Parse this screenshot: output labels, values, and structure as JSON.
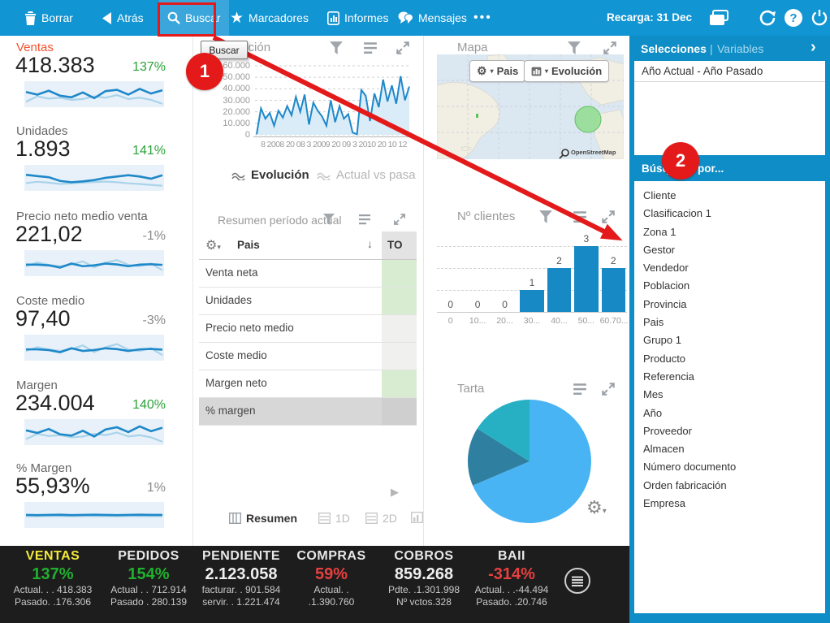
{
  "toolbar": {
    "items": [
      "Borrar",
      "Atrás",
      "Buscar",
      "Marcadores",
      "Informes",
      "Mensajes"
    ],
    "more": "•••",
    "reload": "Recarga: 31 Dec"
  },
  "kpis": [
    {
      "label": "Ventas",
      "value": "418.383",
      "pct": "137%",
      "spark_current": [
        62,
        50,
        68,
        45,
        38,
        60,
        34,
        66,
        72,
        50,
        76,
        55,
        70
      ],
      "spark_past": [
        18,
        42,
        32,
        36,
        26,
        30,
        42,
        36,
        48,
        30,
        36,
        26,
        8
      ]
    },
    {
      "label": "Unidades",
      "value": "1.893",
      "pct": "141%",
      "spark_current": [
        66,
        60,
        55,
        38,
        32,
        36,
        42,
        52,
        58,
        64,
        58,
        48,
        64
      ],
      "spark_past": [
        28,
        34,
        30,
        24,
        27,
        30,
        33,
        35,
        32,
        27,
        24,
        20,
        16
      ]
    },
    {
      "label": "Precio neto medio venta",
      "value": "221,02",
      "pct": "-1%",
      "spark_current": [
        45,
        45,
        42,
        32,
        50,
        38,
        42,
        50,
        46,
        38,
        45,
        47,
        44
      ],
      "spark_past": [
        38,
        55,
        44,
        38,
        46,
        60,
        33,
        55,
        66,
        44,
        38,
        50,
        20
      ]
    },
    {
      "label": "Coste medio",
      "value": "97,40",
      "pct": "-3%",
      "spark_current": [
        44,
        44,
        41,
        31,
        49,
        37,
        41,
        49,
        45,
        37,
        44,
        46,
        43
      ],
      "spark_past": [
        37,
        54,
        43,
        37,
        45,
        62,
        32,
        54,
        68,
        43,
        37,
        49,
        18
      ]
    },
    {
      "label": "Margen",
      "value": "234.004",
      "pct": "140%",
      "spark_current": [
        60,
        48,
        66,
        42,
        36,
        58,
        32,
        64,
        74,
        52,
        78,
        56,
        72
      ],
      "spark_past": [
        20,
        44,
        34,
        38,
        28,
        32,
        44,
        38,
        50,
        32,
        38,
        28,
        8
      ]
    },
    {
      "label": "% Margen",
      "value": "55,93%",
      "pct": "1%",
      "spark_current": [
        52,
        51,
        52,
        53,
        51,
        52,
        53,
        52,
        51,
        52,
        53,
        52,
        52
      ],
      "spark_past": [
        46,
        46,
        47,
        46,
        46,
        47,
        46,
        46,
        46,
        47,
        46,
        46,
        46
      ]
    }
  ],
  "evolution_panel": {
    "title": "Evolución",
    "tabs": [
      {
        "label": "Evolución"
      },
      {
        "label": "Actual vs pasa"
      }
    ]
  },
  "summary_table": {
    "title": "Resumen período actual",
    "dim_header": "Pais",
    "total_header": "TO",
    "rows": [
      {
        "label": "Venta neta"
      },
      {
        "label": "Unidades"
      },
      {
        "label": "Precio neto medio"
      },
      {
        "label": "Coste medio"
      },
      {
        "label": "Margen neto"
      },
      {
        "label": "% margen"
      }
    ]
  },
  "footer_tabs": {
    "resumen": "Resumen",
    "one_d": "1D",
    "two_d": "2D"
  },
  "map_panel": {
    "title": "Mapa",
    "pais_btn": "Pais",
    "evolucion_btn": "Evolución",
    "attribution": "OpenStreetMap"
  },
  "clients_panel": {
    "title": "Nº clientes"
  },
  "pie_panel": {
    "title": "Tarta"
  },
  "right_panel": {
    "tab_selected": "Selecciones",
    "tab_separator": "|",
    "tab_other": "Variables",
    "chevron": "›",
    "selection": "Año Actual - Año Pasado",
    "search_title": "Búsqueda por...",
    "fields": [
      "Cliente",
      "Clasificacion 1",
      "Zona 1",
      "Gestor",
      "Vendedor",
      "Poblacion",
      "Provincia",
      "Pais",
      "Grupo 1",
      "Producto",
      "Referencia",
      "Mes",
      "Año",
      "Proveedor",
      "Almacen",
      "Número documento",
      "Orden fabricación",
      "Empresa"
    ]
  },
  "footer": {
    "metrics": [
      {
        "title": "VENTAS",
        "value": "137%",
        "line1": "Actual. . . 418.383",
        "line2": "Pasado. .176.306"
      },
      {
        "title": "PEDIDOS",
        "value": "154%",
        "line1": "Actual . . 712.914",
        "line2": "Pasado . 280.139"
      },
      {
        "title": "PENDIENTE",
        "value": "2.123.058",
        "line1": "facturar. . 901.584",
        "line2": "servir. . 1.221.474"
      },
      {
        "title": "COMPRAS",
        "value": "59%",
        "line1": "Actual. .",
        "line2": ".1.390.760"
      },
      {
        "title": "COBROS",
        "value": "859.268",
        "line1": "Pdte. .1.301.998",
        "line2": "Nº vctos.328"
      },
      {
        "title": "BAII",
        "value": "-314%",
        "line1": "Actual. . .-44.494",
        "line2": "Pasado. .20.746"
      }
    ]
  },
  "annotations": {
    "tooltip": "Buscar",
    "step1": "1",
    "step2": "2"
  },
  "chart_data": [
    {
      "id": "evolucion",
      "type": "line",
      "title": "Evolución",
      "ylabel": "",
      "xlabel": "",
      "ylim": [
        0,
        60000
      ],
      "y_ticks": [
        "60.000",
        "50.000",
        "40.000",
        "30.000",
        "20.000",
        "10.000",
        "0"
      ],
      "x_axis_text": "8 2008 20 08 3 2009 20 09 3 2010 20 10 12",
      "values": [
        500,
        23000,
        14000,
        19000,
        8000,
        21000,
        15000,
        25000,
        17000,
        33000,
        20000,
        35000,
        9000,
        28000,
        21000,
        16000,
        8000,
        30000,
        11000,
        25000,
        14000,
        18000,
        2000,
        500,
        39000,
        34000,
        12000,
        36000,
        24000,
        48000,
        29000,
        43000,
        27000,
        51000,
        30000,
        42000
      ]
    },
    {
      "id": "n-clientes",
      "type": "bar",
      "title": "Nº clientes",
      "categories": [
        "0",
        "10...",
        "20...",
        "30...",
        "40...",
        "50...",
        "60.70..."
      ],
      "values": [
        0,
        0,
        0,
        1,
        2,
        3,
        2
      ],
      "ylim": [
        0,
        3.5
      ],
      "grid": "dashed-horizontal"
    },
    {
      "id": "tarta",
      "type": "pie",
      "title": "Tarta",
      "slices": [
        {
          "value": 68.6,
          "color": "#49b4f3"
        },
        {
          "value": 15.3,
          "color": "#2e7fa0"
        },
        {
          "value": 16.1,
          "color": "#27b0c3"
        }
      ]
    }
  ]
}
